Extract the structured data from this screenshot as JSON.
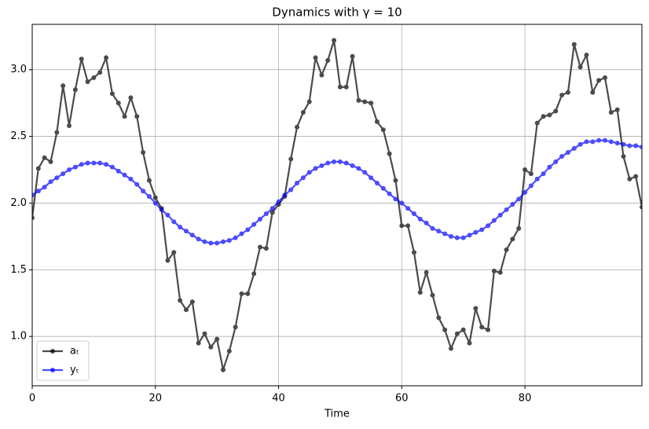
{
  "chart_data": {
    "type": "line",
    "title": "Dynamics with γ = 10",
    "xlabel": "Time",
    "x": [
      0,
      1,
      2,
      3,
      4,
      5,
      6,
      7,
      8,
      9,
      10,
      11,
      12,
      13,
      14,
      15,
      16,
      17,
      18,
      19,
      20,
      21,
      22,
      23,
      24,
      25,
      26,
      27,
      28,
      29,
      30,
      31,
      32,
      33,
      34,
      35,
      36,
      37,
      38,
      39,
      40,
      41,
      42,
      43,
      44,
      45,
      46,
      47,
      48,
      49,
      50,
      51,
      52,
      53,
      54,
      55,
      56,
      57,
      58,
      59,
      60,
      61,
      62,
      63,
      64,
      65,
      66,
      67,
      68,
      69,
      70,
      71,
      72,
      73,
      74,
      75,
      76,
      77,
      78,
      79,
      80,
      81,
      82,
      83,
      84,
      85,
      86,
      87,
      88,
      89,
      90,
      91,
      92,
      93,
      94,
      95,
      96,
      97,
      98,
      99
    ],
    "series": [
      {
        "name": "aₜ",
        "color": "#000000",
        "values": [
          1.89,
          2.26,
          2.34,
          2.31,
          2.53,
          2.88,
          2.58,
          2.85,
          3.08,
          2.91,
          2.94,
          2.98,
          3.09,
          2.82,
          2.75,
          2.65,
          2.79,
          2.65,
          2.38,
          2.17,
          2.04,
          1.96,
          1.57,
          1.63,
          1.27,
          1.2,
          1.26,
          0.95,
          1.02,
          0.92,
          0.98,
          0.75,
          0.89,
          1.07,
          1.32,
          1.32,
          1.47,
          1.67,
          1.66,
          1.93,
          1.99,
          2.05,
          2.33,
          2.57,
          2.68,
          2.76,
          3.09,
          2.96,
          3.07,
          3.22,
          2.87,
          2.87,
          3.1,
          2.77,
          2.76,
          2.75,
          2.61,
          2.55,
          2.37,
          2.17,
          1.83,
          1.83,
          1.63,
          1.33,
          1.48,
          1.31,
          1.14,
          1.05,
          0.91,
          1.02,
          1.05,
          0.95,
          1.21,
          1.07,
          1.05,
          1.49,
          1.48,
          1.65,
          1.73,
          1.81,
          2.25,
          2.22,
          2.6,
          2.65,
          2.66,
          2.69,
          2.81,
          2.83,
          3.19,
          3.02,
          3.11,
          2.83,
          2.92,
          2.94,
          2.68,
          2.7,
          2.35,
          2.18,
          2.2,
          1.97
        ]
      },
      {
        "name": "yₜ",
        "color": "#0000ff",
        "values": [
          2.06,
          2.09,
          2.12,
          2.16,
          2.19,
          2.22,
          2.25,
          2.27,
          2.29,
          2.3,
          2.3,
          2.3,
          2.29,
          2.27,
          2.24,
          2.21,
          2.18,
          2.14,
          2.09,
          2.05,
          2.0,
          1.95,
          1.91,
          1.86,
          1.82,
          1.79,
          1.76,
          1.73,
          1.71,
          1.7,
          1.7,
          1.71,
          1.72,
          1.74,
          1.77,
          1.8,
          1.84,
          1.88,
          1.92,
          1.96,
          2.01,
          2.06,
          2.1,
          2.15,
          2.19,
          2.23,
          2.26,
          2.28,
          2.3,
          2.31,
          2.31,
          2.3,
          2.28,
          2.26,
          2.23,
          2.19,
          2.15,
          2.11,
          2.07,
          2.03,
          2.0,
          1.96,
          1.92,
          1.88,
          1.85,
          1.81,
          1.79,
          1.77,
          1.75,
          1.74,
          1.74,
          1.76,
          1.78,
          1.8,
          1.83,
          1.87,
          1.91,
          1.95,
          1.99,
          2.03,
          2.08,
          2.13,
          2.18,
          2.22,
          2.27,
          2.31,
          2.35,
          2.38,
          2.41,
          2.44,
          2.46,
          2.46,
          2.47,
          2.47,
          2.46,
          2.45,
          2.44,
          2.43,
          2.43,
          2.42
        ]
      }
    ],
    "xlim": [
      0,
      99
    ],
    "ylim": [
      0.63,
      3.34
    ],
    "xticks": [
      0,
      20,
      40,
      60,
      80
    ],
    "yticks": [
      {
        "value": 1,
        "label": "1.0"
      },
      {
        "value": 1.5,
        "label": "1.5"
      },
      {
        "value": 2,
        "label": "2.0"
      },
      {
        "value": 2.5,
        "label": "2.5"
      },
      {
        "value": 3,
        "label": "3.0"
      }
    ],
    "grid": true,
    "legend": "lower left"
  }
}
